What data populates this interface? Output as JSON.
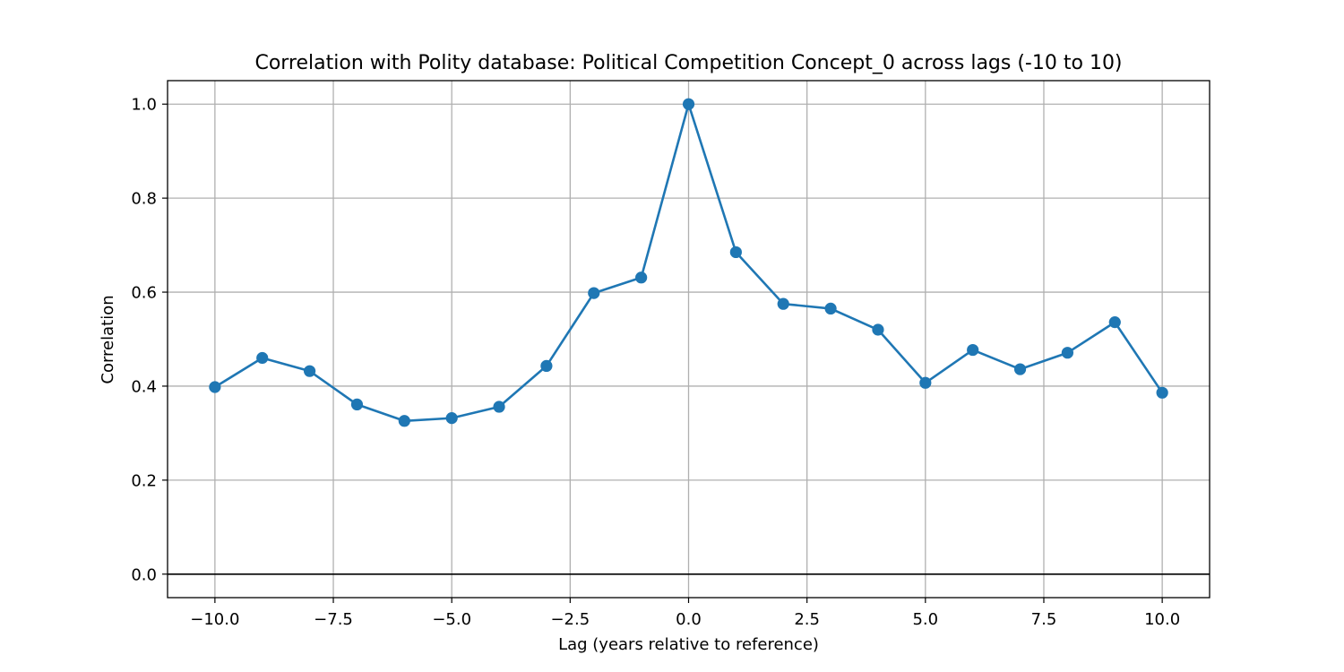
{
  "chart_data": {
    "type": "line",
    "title": "Correlation with Polity database: Political Competition Concept_0 across lags (-10 to 10)",
    "xlabel": "Lag (years relative to reference)",
    "ylabel": "Correlation",
    "x": [
      -10,
      -9,
      -8,
      -7,
      -6,
      -5,
      -4,
      -3,
      -2,
      -1,
      0,
      1,
      2,
      3,
      4,
      5,
      6,
      7,
      8,
      9,
      10
    ],
    "series": [
      {
        "values": [
          0.398,
          0.46,
          0.432,
          0.361,
          0.326,
          0.332,
          0.356,
          0.443,
          0.598,
          0.631,
          1.0,
          0.685,
          0.575,
          0.565,
          0.52,
          0.407,
          0.477,
          0.436,
          0.471,
          0.536,
          0.386
        ],
        "color": "#1f77b4",
        "marker": "circle"
      }
    ],
    "xlim": [
      -11,
      11
    ],
    "ylim": [
      -0.05,
      1.05
    ],
    "x_ticks": [
      -10.0,
      -7.5,
      -5.0,
      -2.5,
      0.0,
      2.5,
      5.0,
      7.5,
      10.0
    ],
    "x_tick_labels": [
      "−10.0",
      "−7.5",
      "−5.0",
      "−2.5",
      "0.0",
      "2.5",
      "5.0",
      "7.5",
      "10.0"
    ],
    "y_ticks": [
      0.0,
      0.2,
      0.4,
      0.6,
      0.8,
      1.0
    ],
    "y_tick_labels": [
      "0.0",
      "0.2",
      "0.4",
      "0.6",
      "0.8",
      "1.0"
    ],
    "reference_line_y": 0.0,
    "grid": true,
    "grid_color": "#b0b0b0",
    "line_color": "#1f77b4"
  }
}
